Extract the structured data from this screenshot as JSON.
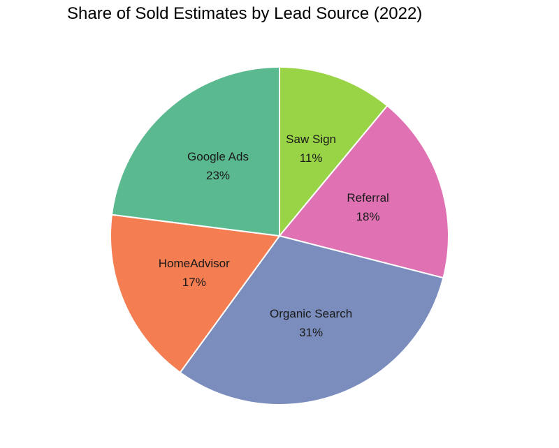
{
  "chart_data": {
    "type": "pie",
    "title": "Share of Sold Estimates by Lead Source (2022)",
    "start_angle_deg": 90,
    "direction": "clockwise",
    "slices": [
      {
        "label": "Saw Sign",
        "value": 11,
        "pct_label": "11%",
        "color": "#99d447"
      },
      {
        "label": "Referral",
        "value": 18,
        "pct_label": "18%",
        "color": "#e072b4"
      },
      {
        "label": "Organic Search",
        "value": 31,
        "pct_label": "31%",
        "color": "#7a8dbd"
      },
      {
        "label": "HomeAdvisor",
        "value": 17,
        "pct_label": "17%",
        "color": "#f47d52"
      },
      {
        "label": "Google Ads",
        "value": 23,
        "pct_label": "23%",
        "color": "#5bb990"
      }
    ]
  }
}
